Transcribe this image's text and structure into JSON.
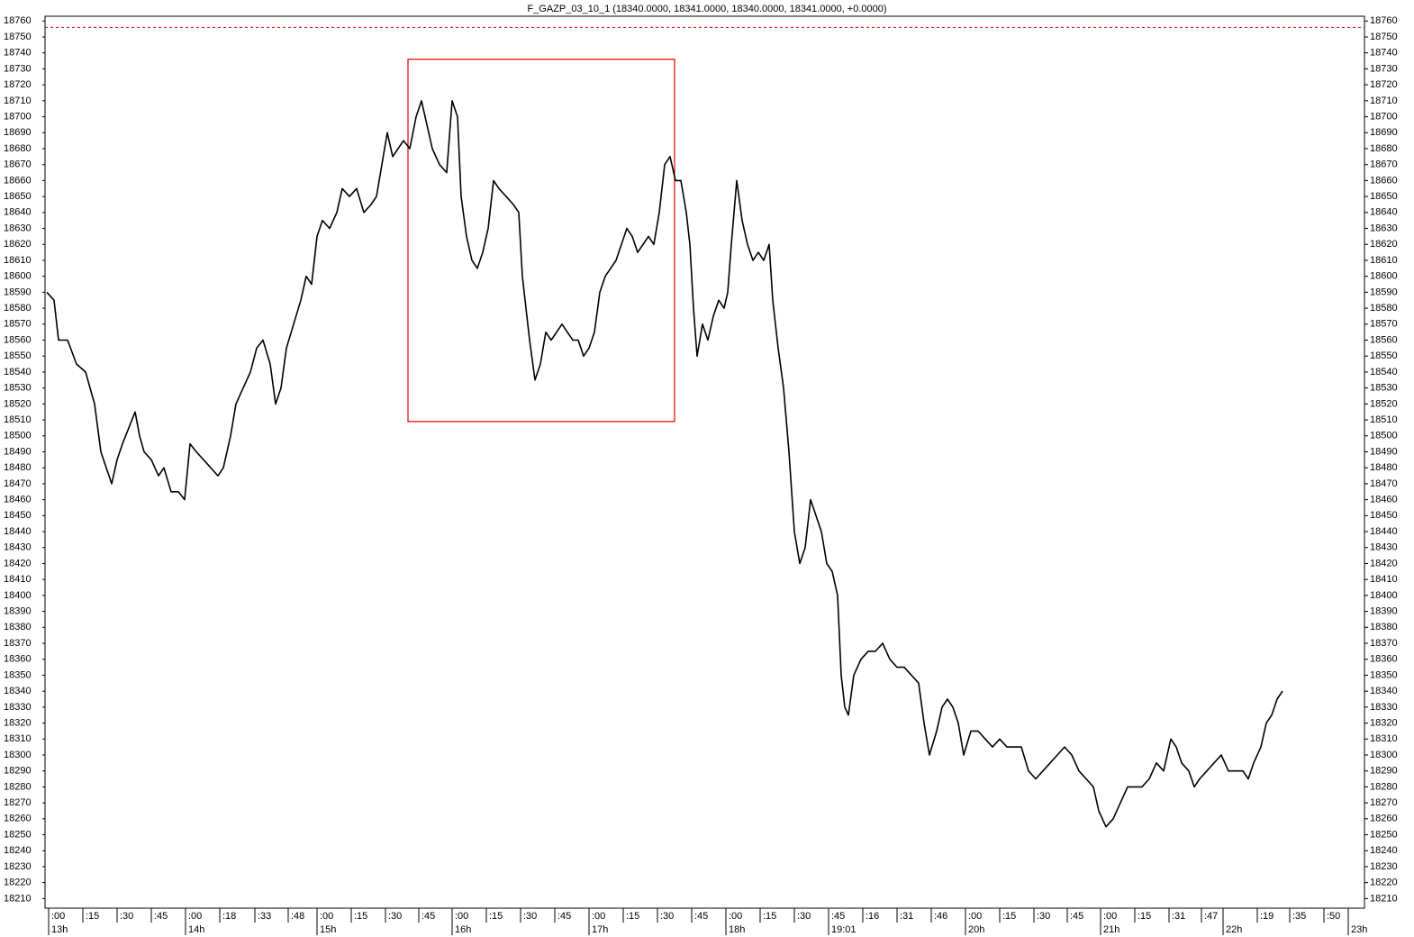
{
  "chart_data": {
    "type": "line",
    "title": "F_GAZP_03_10_1 (18340.0000, 18341.0000, 18340.0000, 18341.0000, +0.0000)",
    "series": [
      {
        "name": "F_GAZP_03_10_1",
        "color": "#000000",
        "x": [
          0,
          8,
          13,
          23,
          33,
          43,
          53,
          60,
          66,
          72,
          78,
          84,
          91,
          98,
          103,
          108,
          116,
          124,
          130,
          138,
          146,
          153,
          159,
          166,
          174,
          182,
          190,
          196,
          204,
          210,
          218,
          226,
          233,
          240,
          248,
          254,
          260,
          266,
          274,
          282,
          288,
          294,
          300,
          306,
          314,
          322,
          328,
          336,
          344,
          352,
          360,
          366,
          372,
          378,
          384,
          390,
          396,
          403,
          410,
          416,
          422,
          428,
          436,
          444,
          450,
          456,
          460,
          466,
          472,
          478,
          484,
          490,
          496,
          502,
          510,
          518,
          524,
          528,
          532,
          536,
          542,
          548,
          554,
          560,
          566,
          572,
          578,
          584,
          590,
          596,
          602,
          608,
          614,
          620,
          626,
          632,
          638,
          644,
          650,
          656,
          662,
          668,
          674,
          680,
          686,
          692,
          698,
          704,
          710,
          714,
          718,
          722,
          728,
          734,
          740,
          746,
          752,
          756,
          760,
          766,
          772,
          778,
          784,
          790,
          796,
          802,
          806,
          812,
          818,
          824,
          830,
          836,
          842,
          848,
          854,
          860,
          866,
          872,
          878,
          882,
          886,
          890,
          896,
          904,
          912,
          920,
          928,
          936,
          944,
          952,
          960,
          968,
          974,
          980,
          988,
          994,
          1000,
          1006,
          1012,
          1018,
          1026,
          1034,
          1042,
          1050,
          1058,
          1066,
          1074,
          1082,
          1090,
          1098,
          1106,
          1114,
          1122,
          1130,
          1138,
          1146,
          1154,
          1162,
          1168,
          1176,
          1184,
          1192,
          1200,
          1208,
          1216,
          1224,
          1232,
          1240,
          1248,
          1254,
          1260,
          1268,
          1274,
          1280,
          1288,
          1296,
          1304,
          1312,
          1320,
          1328,
          1334,
          1340,
          1348,
          1354,
          1360,
          1366,
          1372
        ],
        "values": [
          18590,
          18585,
          18560,
          18560,
          18545,
          18540,
          18520,
          18490,
          18480,
          18470,
          18485,
          18495,
          18505,
          18515,
          18500,
          18490,
          18485,
          18475,
          18480,
          18465,
          18465,
          18460,
          18495,
          18490,
          18485,
          18480,
          18475,
          18480,
          18500,
          18520,
          18530,
          18540,
          18555,
          18560,
          18545,
          18520,
          18530,
          18555,
          18570,
          18585,
          18600,
          18595,
          18625,
          18635,
          18630,
          18640,
          18655,
          18650,
          18655,
          18640,
          18645,
          18650,
          18670,
          18690,
          18675,
          18680,
          18685,
          18680,
          18700,
          18710,
          18695,
          18680,
          18670,
          18665,
          18710,
          18700,
          18650,
          18625,
          18610,
          18605,
          18615,
          18630,
          18660,
          18655,
          18650,
          18645,
          18640,
          18600,
          18580,
          18560,
          18535,
          18545,
          18565,
          18560,
          18565,
          18570,
          18565,
          18560,
          18560,
          18550,
          18555,
          18565,
          18590,
          18600,
          18605,
          18610,
          18620,
          18630,
          18625,
          18615,
          18620,
          18625,
          18620,
          18640,
          18670,
          18675,
          18660,
          18660,
          18640,
          18620,
          18580,
          18550,
          18570,
          18560,
          18575,
          18585,
          18580,
          18590,
          18620,
          18660,
          18635,
          18620,
          18610,
          18615,
          18610,
          18620,
          18585,
          18555,
          18530,
          18490,
          18440,
          18420,
          18430,
          18460,
          18450,
          18440,
          18420,
          18415,
          18400,
          18350,
          18330,
          18325,
          18350,
          18360,
          18365,
          18365,
          18370,
          18360,
          18355,
          18355,
          18350,
          18345,
          18320,
          18300,
          18315,
          18330,
          18335,
          18330,
          18320,
          18300,
          18315,
          18315,
          18310,
          18305,
          18310,
          18305,
          18305,
          18305,
          18290,
          18285,
          18290,
          18295,
          18300,
          18305,
          18300,
          18290,
          18285,
          18280,
          18265,
          18255,
          18260,
          18270,
          18280,
          18280,
          18280,
          18285,
          18295,
          18290,
          18310,
          18305,
          18295,
          18290,
          18280,
          18285,
          18290,
          18295,
          18300,
          18290,
          18290,
          18290,
          18285,
          18295,
          18305,
          18320,
          18325,
          18335,
          18340
        ]
      }
    ],
    "reference_line": {
      "value": 18756,
      "color": "#e00000"
    },
    "highlight_box": {
      "x": [
        401,
        697
      ],
      "y": [
        18509,
        18736
      ],
      "color": "#e00000"
    },
    "xlim": [
      -2,
      1463
    ],
    "ylim": [
      18204,
      18763
    ],
    "yticks": [
      18210,
      18220,
      18230,
      18240,
      18250,
      18260,
      18270,
      18280,
      18290,
      18300,
      18310,
      18320,
      18330,
      18340,
      18350,
      18360,
      18370,
      18380,
      18390,
      18400,
      18410,
      18420,
      18430,
      18440,
      18450,
      18460,
      18470,
      18480,
      18490,
      18500,
      18510,
      18520,
      18530,
      18540,
      18550,
      18560,
      18570,
      18580,
      18590,
      18600,
      18610,
      18620,
      18630,
      18640,
      18650,
      18660,
      18670,
      18680,
      18690,
      18700,
      18710,
      18720,
      18730,
      18740,
      18750,
      18760
    ],
    "xticks": [
      {
        "value": 2,
        "label": ":00"
      },
      {
        "value": 40,
        "label": ":15"
      },
      {
        "value": 78,
        "label": ":30"
      },
      {
        "value": 116,
        "label": ":45"
      },
      {
        "value": 154,
        "label": ":00"
      },
      {
        "value": 192,
        "label": ":18"
      },
      {
        "value": 231,
        "label": ":33"
      },
      {
        "value": 268,
        "label": ":48"
      },
      {
        "value": 300,
        "label": ":00"
      },
      {
        "value": 338,
        "label": ":15"
      },
      {
        "value": 376,
        "label": ":30"
      },
      {
        "value": 413,
        "label": ":45"
      },
      {
        "value": 450,
        "label": ":00"
      },
      {
        "value": 488,
        "label": ":15"
      },
      {
        "value": 526,
        "label": ":30"
      },
      {
        "value": 564,
        "label": ":45"
      },
      {
        "value": 602,
        "label": ":00"
      },
      {
        "value": 640,
        "label": ":15"
      },
      {
        "value": 678,
        "label": ":30"
      },
      {
        "value": 716,
        "label": ":45"
      },
      {
        "value": 754,
        "label": ":00"
      },
      {
        "value": 792,
        "label": ":15"
      },
      {
        "value": 830,
        "label": ":30"
      },
      {
        "value": 868,
        "label": ":45"
      },
      {
        "value": 906,
        "label": ":16"
      },
      {
        "value": 944,
        "label": ":31"
      },
      {
        "value": 982,
        "label": ":46"
      },
      {
        "value": 1020,
        "label": ":00"
      },
      {
        "value": 1058,
        "label": ":15"
      },
      {
        "value": 1096,
        "label": ":30"
      },
      {
        "value": 1133,
        "label": ":45"
      },
      {
        "value": 1170,
        "label": ":00"
      },
      {
        "value": 1208,
        "label": ":15"
      },
      {
        "value": 1246,
        "label": ":31"
      },
      {
        "value": 1282,
        "label": ":47"
      },
      {
        "value": 1344,
        "label": ":19"
      },
      {
        "value": 1380,
        "label": ":35"
      },
      {
        "value": 1418,
        "label": ":50"
      }
    ],
    "xticks_major": [
      {
        "value": 2,
        "label": "13h"
      },
      {
        "value": 154,
        "label": "14h"
      },
      {
        "value": 300,
        "label": "15h"
      },
      {
        "value": 450,
        "label": "16h"
      },
      {
        "value": 602,
        "label": "17h"
      },
      {
        "value": 754,
        "label": "18h"
      },
      {
        "value": 868,
        "label": "19:01"
      },
      {
        "value": 1020,
        "label": "20h"
      },
      {
        "value": 1170,
        "label": "21h"
      },
      {
        "value": 1306,
        "label": "22h"
      },
      {
        "value": 1445,
        "label": "23h"
      }
    ]
  }
}
